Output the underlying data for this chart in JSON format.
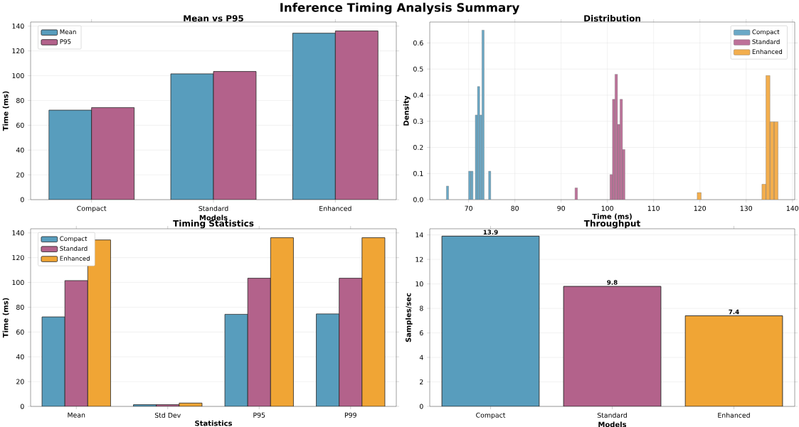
{
  "chart_data": [
    {
      "type": "other",
      "title": "Inference Timing Analysis Summary"
    },
    {
      "type": "bar",
      "title": "Mean vs P95",
      "xlabel": "Models",
      "ylabel": "Time (ms)",
      "categories": [
        "Compact",
        "Standard",
        "Enhanced"
      ],
      "series": [
        {
          "name": "Mean",
          "color": "#589dbd",
          "values": [
            72.2,
            101.5,
            134.3
          ]
        },
        {
          "name": "P95",
          "color": "#b3628b",
          "values": [
            74.3,
            103.4,
            136.1
          ]
        }
      ],
      "ylim": [
        0,
        143.3
      ],
      "yticks": [
        0,
        20,
        40,
        60,
        80,
        100,
        120,
        140
      ],
      "grid": "y",
      "legend": "top left"
    },
    {
      "type": "bar",
      "title": "Distribution",
      "xlabel": "Time (ms)",
      "ylabel": "Density",
      "series": [
        {
          "name": "Compact",
          "color": "#6aa8c6",
          "x": [
            65.44,
            70.24,
            70.72,
            71.68,
            72.16,
            72.64,
            73.12,
            74.56
          ],
          "values": [
            0.052,
            0.109,
            0.109,
            0.324,
            0.433,
            0.324,
            0.649,
            0.109
          ]
        },
        {
          "name": "Standard",
          "color": "#bd7199",
          "x": [
            93.27,
            100.83,
            101.37,
            101.91,
            102.45,
            102.99,
            103.53
          ],
          "values": [
            0.045,
            0.096,
            0.384,
            0.48,
            0.288,
            0.384,
            0.192
          ]
        },
        {
          "name": "Enhanced",
          "color": "#f3ae4d",
          "x": [
            119.84,
            133.84,
            134.71,
            135.59,
            136.46
          ],
          "values": [
            0.027,
            0.059,
            0.475,
            0.298,
            0.298
          ]
        }
      ],
      "xlim": [
        61.6,
        140.5
      ],
      "xticks": [
        70,
        80,
        90,
        100,
        110,
        120,
        130,
        140
      ],
      "ylim": [
        0,
        0.68
      ],
      "yticks": [
        {
          "value": 0,
          "label": "0.0"
        },
        0.1,
        0.2,
        0.3,
        0.4,
        0.5,
        0.6
      ],
      "grid": true,
      "legend": "top right"
    },
    {
      "type": "bar",
      "title": "Timing Statistics",
      "xlabel": "Statistics",
      "ylabel": "Time (ms)",
      "categories": [
        "Mean",
        "Std Dev",
        "P95",
        "P99"
      ],
      "series": [
        {
          "name": "Compact",
          "color": "#589dbd",
          "values": [
            72.2,
            1.4,
            74.3,
            74.6
          ]
        },
        {
          "name": "Standard",
          "color": "#b3628b",
          "values": [
            101.5,
            1.4,
            103.4,
            103.4
          ]
        },
        {
          "name": "Enhanced",
          "color": "#f0a535",
          "values": [
            134.3,
            2.7,
            136.1,
            136.1
          ]
        }
      ],
      "ylim": [
        0,
        143.3
      ],
      "yticks": [
        0,
        20,
        40,
        60,
        80,
        100,
        120,
        140
      ],
      "grid": "y",
      "legend": "top left"
    },
    {
      "type": "bar",
      "title": "Throughput",
      "xlabel": "Models",
      "ylabel": "Samples/sec",
      "categories": [
        "Compact",
        "Standard",
        "Enhanced"
      ],
      "values": [
        13.9,
        9.8,
        7.4
      ],
      "colors": [
        "#589dbd",
        "#b3628b",
        "#f0a535"
      ],
      "data_labels": true,
      "ylim": [
        0,
        14.5
      ],
      "yticks": [
        0,
        2,
        4,
        6,
        8,
        10,
        12,
        14
      ],
      "grid": "y"
    }
  ]
}
